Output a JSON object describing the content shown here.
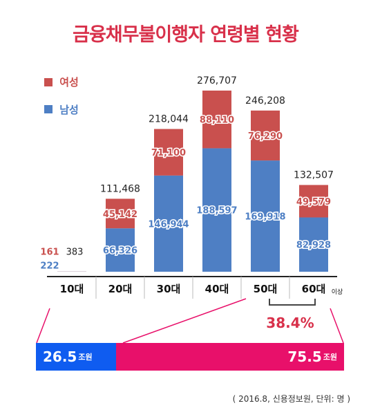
{
  "chart_data": {
    "type": "bar",
    "title": "금융채무불이행자 연령별 현황",
    "categories": [
      "10대",
      "20대",
      "30대",
      "40대",
      "50대",
      "60대"
    ],
    "category_suffix": [
      "",
      "",
      "",
      "",
      "",
      "이상"
    ],
    "series": [
      {
        "name": "남성",
        "color": "#4e7fc4",
        "values": [
          222,
          66326,
          146944,
          188597,
          169918,
          82928
        ],
        "labels": [
          "222",
          "66,326",
          "146,944",
          "188,597",
          "169,918",
          "82,928"
        ]
      },
      {
        "name": "여성",
        "color": "#c9504e",
        "values": [
          161,
          45142,
          71100,
          88110,
          76290,
          49579
        ],
        "labels": [
          "161",
          "45,142",
          "71,100",
          "88,110",
          "76,290",
          "49,579"
        ]
      }
    ],
    "totals": [
      383,
      111468,
      218044,
      276707,
      246208,
      132507
    ],
    "total_labels": [
      "383",
      "111,468",
      "218,044",
      "276,707",
      "246,208",
      "132,507"
    ],
    "ylim": [
      0,
      276707
    ],
    "stacked": true,
    "legend_position": "top-left",
    "annotation": "38.4%",
    "annotation_color": "#d8304a"
  },
  "ratio_bar": {
    "left_value": "26.5",
    "left_unit": "조원",
    "right_value": "75.5",
    "right_unit": "조원",
    "left_color": "#0f5cf0",
    "right_color": "#e8106a",
    "left_share": 0.26
  },
  "source_note": "( 2016.8, 신용정보원, 단위: 명 )"
}
